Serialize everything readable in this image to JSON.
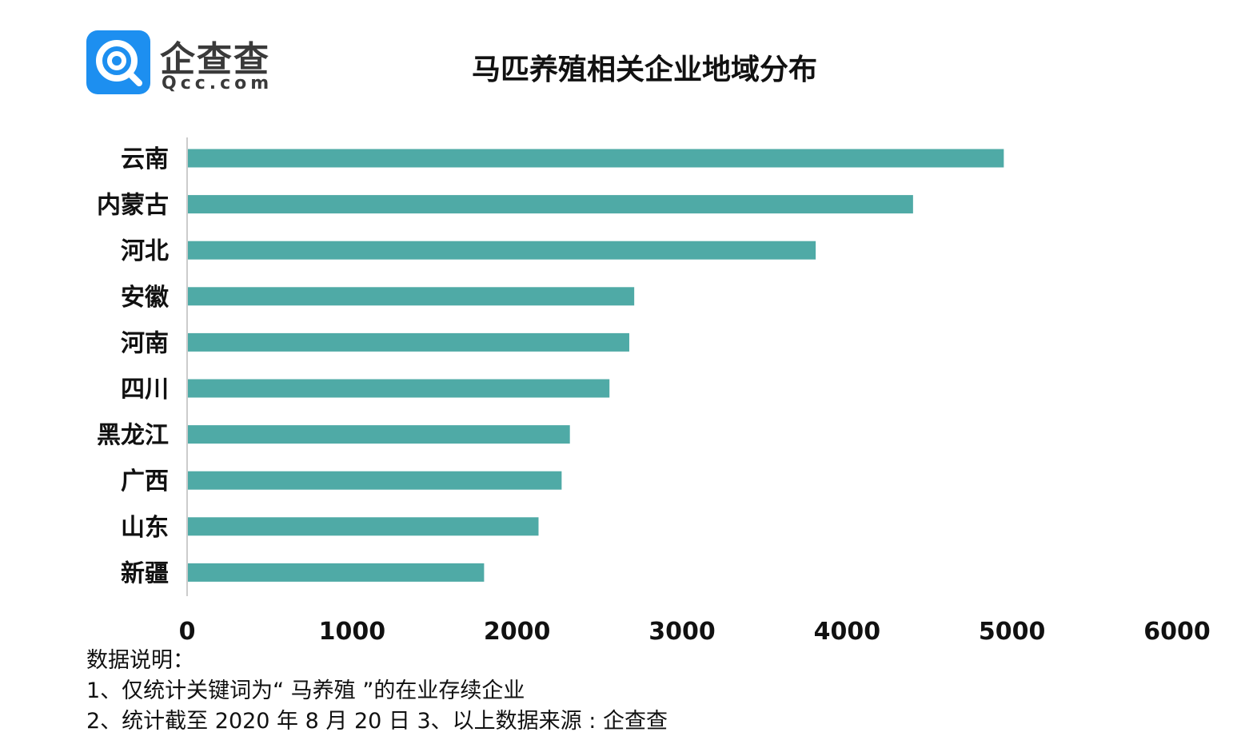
{
  "header": {
    "logo_name": "企查查",
    "logo_domain": "Qcc.com",
    "title": "马匹养殖相关企业地域分布"
  },
  "colors": {
    "bar": "#4faaa6",
    "brand": "#1d8ff0",
    "text": "#111111",
    "axis": "#cccccc"
  },
  "chart_data": {
    "type": "bar",
    "orientation": "horizontal",
    "title": "马匹养殖相关企业地域分布",
    "categories": [
      "云南",
      "内蒙古",
      "河北",
      "安徽",
      "河南",
      "四川",
      "黑龙江",
      "广西",
      "山东",
      "新疆"
    ],
    "values": [
      4950,
      4400,
      3810,
      2710,
      2680,
      2560,
      2320,
      2270,
      2130,
      1800
    ],
    "xlim": [
      0,
      6000
    ],
    "xticks": [
      "0",
      "1000",
      "2000",
      "3000",
      "4000",
      "5000",
      "6000"
    ],
    "grid": false,
    "legend": "none"
  },
  "notes": {
    "heading": "数据说明：",
    "line1": "1、仅统计关键词为“ 马养殖 ”的在业存续企业",
    "line2": "2、统计截至 2020 年 8 月 20 日   3、以上数据来源 : 企查查"
  }
}
